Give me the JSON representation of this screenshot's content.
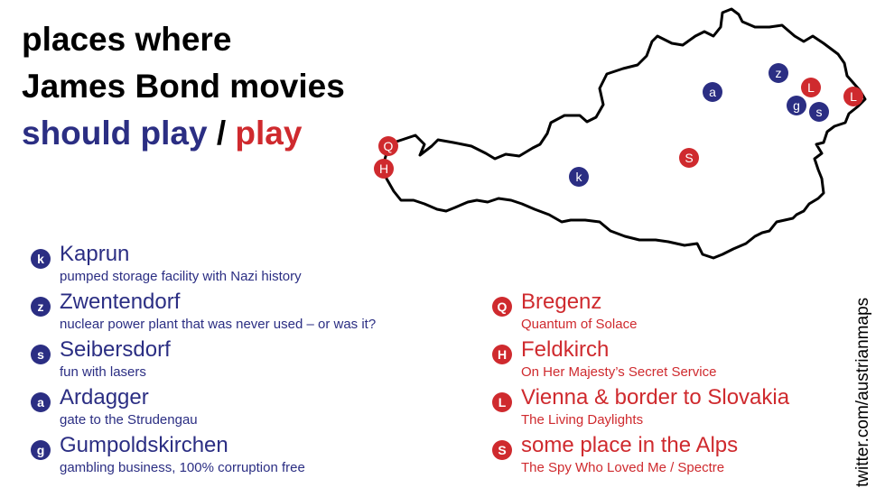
{
  "title": {
    "line1": "places where",
    "line2": "James Bond movies",
    "should_play": "should play",
    "separator": "/",
    "play": "play"
  },
  "colors": {
    "should_play": "#2b2e83",
    "play": "#cf2a2e"
  },
  "map_markers": [
    {
      "letter": "z",
      "group": "should_play"
    },
    {
      "letter": "a",
      "group": "should_play"
    },
    {
      "letter": "g",
      "group": "should_play"
    },
    {
      "letter": "s",
      "group": "should_play"
    },
    {
      "letter": "k",
      "group": "should_play"
    },
    {
      "letter": "L",
      "group": "play"
    },
    {
      "letter": "L",
      "group": "play"
    },
    {
      "letter": "Q",
      "group": "play"
    },
    {
      "letter": "H",
      "group": "play"
    },
    {
      "letter": "S",
      "group": "play"
    }
  ],
  "legend_should_play": [
    {
      "letter": "k",
      "name": "Kaprun",
      "desc": "pumped storage facility with Nazi history"
    },
    {
      "letter": "z",
      "name": "Zwentendorf",
      "desc": "nuclear power plant that was never used – or was it?"
    },
    {
      "letter": "s",
      "name": "Seibersdorf",
      "desc": "fun with lasers"
    },
    {
      "letter": "a",
      "name": "Ardagger",
      "desc": "gate to the Strudengau"
    },
    {
      "letter": "g",
      "name": "Gumpoldskirchen",
      "desc": "gambling business, 100% corruption free"
    }
  ],
  "legend_play": [
    {
      "letter": "Q",
      "name": "Bregenz",
      "desc": "Quantum of Solace"
    },
    {
      "letter": "H",
      "name": "Feldkirch",
      "desc": "On Her Majesty’s Secret Service"
    },
    {
      "letter": "L",
      "name": "Vienna & border to Slovakia",
      "desc": "The Living Daylights"
    },
    {
      "letter": "S",
      "name": "some place in the Alps",
      "desc": "The Spy Who Loved Me / Spectre"
    }
  ],
  "credit": "twitter.com/austrianmaps"
}
